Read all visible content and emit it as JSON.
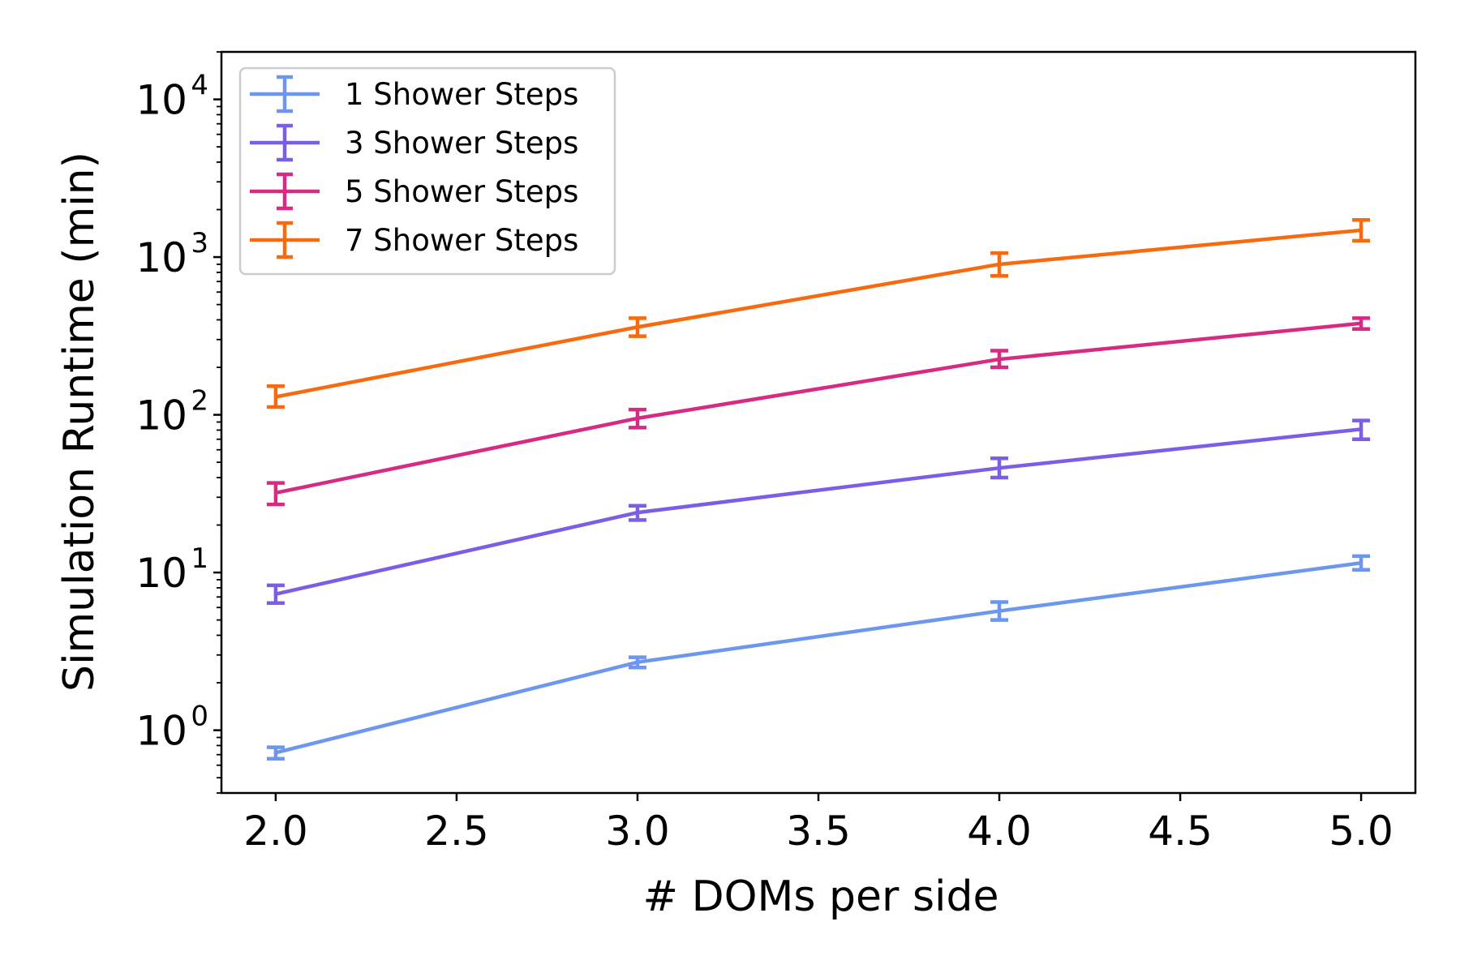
{
  "chart_data": {
    "type": "line",
    "title": "",
    "xlabel": "# DOMs per side",
    "ylabel": "Simulation Runtime (min)",
    "xlim": [
      1.85,
      5.15
    ],
    "ylim": [
      0.4,
      20000
    ],
    "yscale": "log",
    "x_ticks": [
      "2.0",
      "2.5",
      "3.0",
      "3.5",
      "4.0",
      "4.5",
      "5.0"
    ],
    "y_ticks": [
      {
        "base": "10",
        "exp": "0"
      },
      {
        "base": "10",
        "exp": "1"
      },
      {
        "base": "10",
        "exp": "2"
      },
      {
        "base": "10",
        "exp": "3"
      },
      {
        "base": "10",
        "exp": "4"
      }
    ],
    "grid": false,
    "legend_position": "top-left",
    "x": [
      2,
      3,
      4,
      5
    ],
    "series": [
      {
        "name": "1 Shower Steps",
        "color": "#6d96ee",
        "values": [
          0.72,
          2.7,
          5.7,
          11.5
        ],
        "err_low": [
          0.66,
          2.5,
          5.0,
          10.4
        ],
        "err_high": [
          0.78,
          2.9,
          6.5,
          12.7
        ]
      },
      {
        "name": "3 Shower Steps",
        "color": "#7b5ee5",
        "values": [
          7.3,
          24,
          46,
          81
        ],
        "err_low": [
          6.4,
          21.5,
          40,
          70
        ],
        "err_high": [
          8.3,
          26.5,
          53,
          92
        ]
      },
      {
        "name": "5 Shower Steps",
        "color": "#d72a82",
        "values": [
          32,
          95,
          225,
          380
        ],
        "err_low": [
          27,
          83,
          200,
          350
        ],
        "err_high": [
          37,
          108,
          255,
          410
        ]
      },
      {
        "name": "7 Shower Steps",
        "color": "#f86a0f",
        "values": [
          130,
          360,
          900,
          1480
        ],
        "err_low": [
          112,
          315,
          760,
          1270
        ],
        "err_high": [
          152,
          410,
          1060,
          1720
        ]
      }
    ]
  }
}
